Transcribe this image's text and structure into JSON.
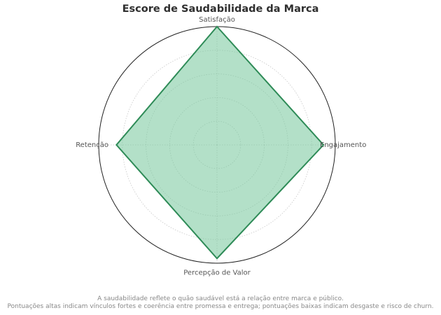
{
  "chart_data": {
    "type": "radar",
    "title": "Escore de Saudabilidade da Marca",
    "axes": [
      "Satisfação",
      "Engajamento",
      "Percepção de Valor",
      "Retenção"
    ],
    "values": [
      100,
      90,
      96,
      85
    ],
    "rlim": [
      0,
      100
    ],
    "grid_rings": [
      20,
      40,
      60,
      80,
      100
    ],
    "grid": true,
    "fill_color": "#7cc9a0",
    "line_color": "#2e8b57"
  },
  "footnote": {
    "line1": "A saudabilidade reflete o quão saudável está a relação entre marca e público.",
    "line2": "Pontuações altas indicam vínculos fortes e coerência entre promessa e entrega; pontuações baixas indicam desgaste e risco de churn."
  }
}
